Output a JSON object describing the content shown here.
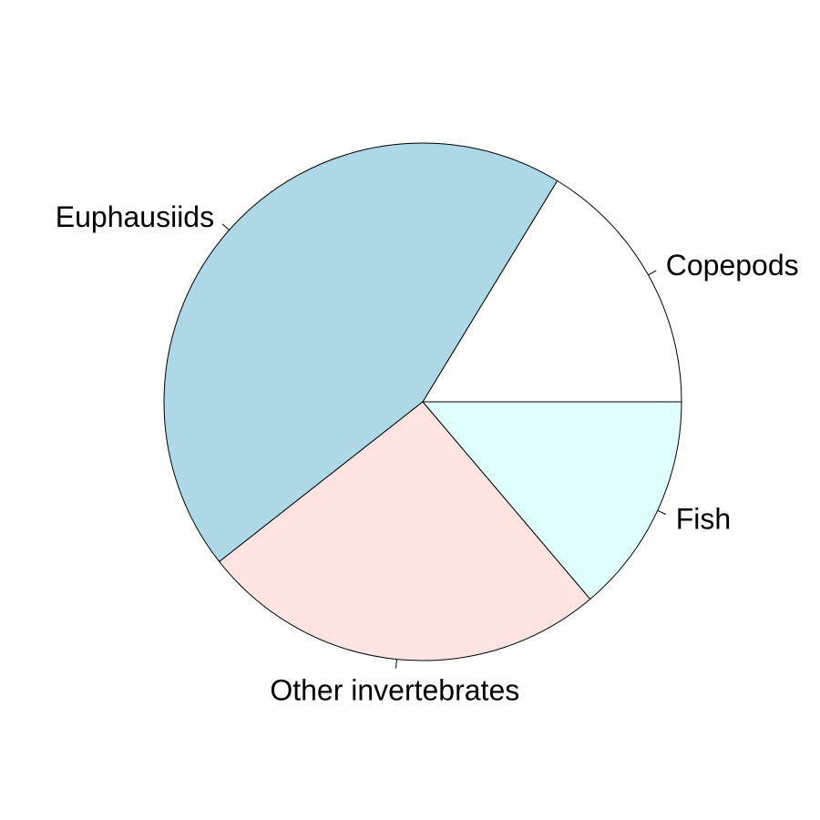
{
  "chart_data": {
    "type": "pie",
    "title": "",
    "direction": "counterclockwise",
    "start": "3 o'clock",
    "slices": [
      {
        "label": "Copepods",
        "value": 16.3,
        "color": "#FFFFFF"
      },
      {
        "label": "Euphausiids",
        "value": 44.3,
        "color": "#ADD8E6"
      },
      {
        "label": "Other invertebrates",
        "value": 25.6,
        "color": "#FFE4E1"
      },
      {
        "label": "Fish",
        "value": 13.8,
        "color": "#E0FFFF"
      }
    ]
  }
}
